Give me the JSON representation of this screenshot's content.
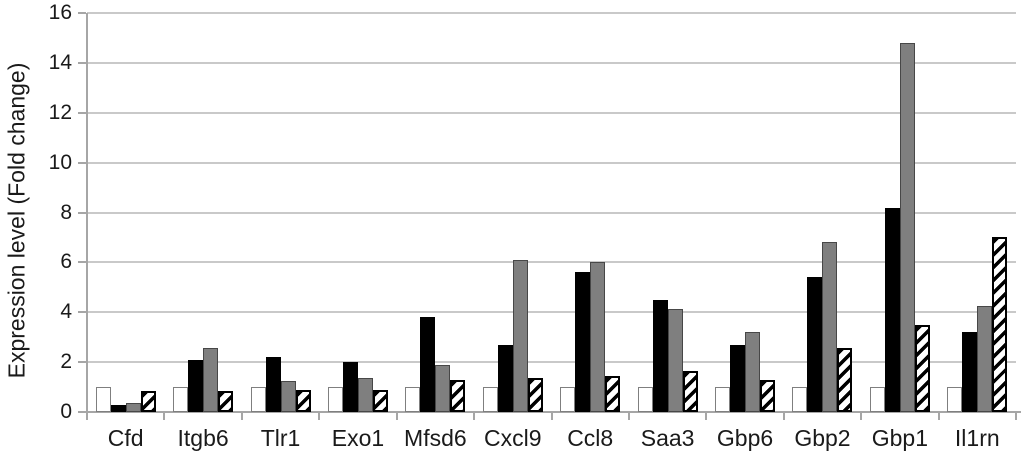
{
  "chart_data": {
    "type": "bar",
    "title": "",
    "ylabel": "Expression level (Fold change)",
    "xlabel": "",
    "ylim": [
      0,
      16
    ],
    "yticks": [
      0,
      2,
      4,
      6,
      8,
      10,
      12,
      14,
      16
    ],
    "grid": "horizontal",
    "legend_position": "none",
    "categories": [
      "Cfd",
      "Itgb6",
      "Tlr1",
      "Exo1",
      "Mfsd6",
      "Cxcl9",
      "Ccl8",
      "Saa3",
      "Gbp6",
      "Gbp2",
      "Gbp1",
      "Il1rn"
    ],
    "series": [
      {
        "name": "white-bar",
        "style": "white",
        "fill": "#ffffff",
        "values": [
          1.0,
          1.0,
          1.0,
          1.0,
          1.0,
          1.0,
          1.0,
          1.0,
          1.0,
          1.0,
          1.0,
          1.0
        ]
      },
      {
        "name": "black-bar",
        "style": "black",
        "fill": "#000000",
        "values": [
          0.3,
          2.1,
          2.2,
          2.0,
          3.8,
          2.7,
          5.6,
          4.5,
          2.7,
          5.4,
          8.2,
          3.2
        ]
      },
      {
        "name": "gray-bar",
        "style": "gray",
        "fill": "#7f7f7f",
        "values": [
          0.35,
          2.55,
          1.25,
          1.35,
          1.9,
          6.1,
          6.0,
          4.15,
          3.2,
          6.8,
          14.8,
          4.25
        ]
      },
      {
        "name": "hatched-bar",
        "style": "hatched",
        "fill": "diagonal-stripes",
        "values": [
          0.85,
          0.85,
          0.9,
          0.9,
          1.3,
          1.35,
          1.45,
          1.65,
          1.3,
          2.55,
          3.5,
          7.0
        ]
      }
    ],
    "colors": {
      "gridline": "#c9c9c9",
      "axis": "#a6a6a6",
      "text": "#1a1a1a",
      "gray_fill": "#7f7f7f",
      "gray_border": "#474747",
      "white_border": "#7f7f7f",
      "hatch": "#000000"
    }
  }
}
